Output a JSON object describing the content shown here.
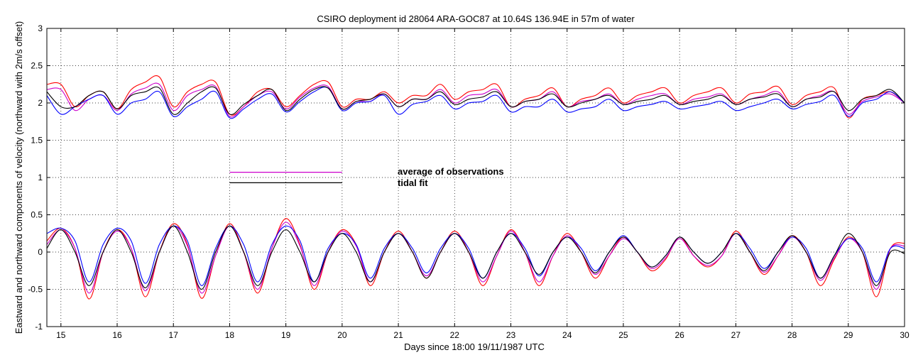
{
  "chart_data": {
    "type": "line",
    "title": "CSIRO deployment id 28064 ARA-GOC87 at 10.64S 136.94E in 57m of water",
    "xlabel": "Days since 18:00 19/11/1987 UTC",
    "ylabel": "Eastward  and northward components of velocity  (northward with 2m/s offset)",
    "xlim": [
      14.75,
      30
    ],
    "ylim": [
      -1,
      3
    ],
    "xticks": [
      15,
      16,
      17,
      18,
      19,
      20,
      21,
      22,
      23,
      24,
      25,
      26,
      27,
      28,
      29,
      30
    ],
    "yticks": [
      -1,
      -0.5,
      0,
      0.5,
      1,
      1.5,
      2,
      2.5,
      3
    ],
    "grid": true,
    "legend": {
      "entries": [
        {
          "label": "average of observations",
          "color": "#cc00cc",
          "y": 1.07
        },
        {
          "label": "tidal fit",
          "color": "#000000",
          "y": 0.93
        }
      ],
      "x_range": [
        18,
        20
      ]
    },
    "series_style": [
      {
        "name": "red",
        "color": "#ff0000"
      },
      {
        "name": "magenta",
        "color": "#cc00cc"
      },
      {
        "name": "blue",
        "color": "#0000ff"
      },
      {
        "name": "black",
        "color": "#000000"
      }
    ],
    "eastward_series": [
      {
        "name": "red",
        "color": "#ff0000",
        "x": [
          14.75,
          15.0,
          15.25,
          15.5,
          15.75,
          16.0,
          16.25,
          16.5,
          16.75,
          17.0,
          17.25,
          17.5,
          17.75,
          18.0,
          18.25,
          18.5,
          18.75,
          19.0,
          19.25,
          19.5,
          19.75,
          20.0,
          20.25,
          20.5,
          20.75,
          21.0,
          21.25,
          21.5,
          21.75,
          22.0,
          22.25,
          22.5,
          22.75,
          23.0,
          23.25,
          23.5,
          23.75,
          24.0,
          24.25,
          24.5,
          24.75,
          25.0,
          25.25,
          25.5,
          25.75,
          26.0,
          26.25,
          26.5,
          26.75,
          27.0,
          27.25,
          27.5,
          27.75,
          28.0,
          28.25,
          28.5,
          28.75,
          29.0,
          29.25,
          29.5,
          29.75,
          30.0
        ],
        "y": [
          0.15,
          0.32,
          0.05,
          -0.63,
          0.0,
          0.3,
          0.05,
          -0.6,
          0.0,
          0.38,
          0.1,
          -0.62,
          -0.05,
          0.38,
          0.0,
          -0.55,
          0.05,
          0.45,
          0.1,
          -0.5,
          0.0,
          0.3,
          0.1,
          -0.45,
          0.0,
          0.28,
          0.0,
          -0.35,
          0.0,
          0.28,
          0.0,
          -0.45,
          -0.05,
          0.3,
          0.0,
          -0.45,
          -0.05,
          0.25,
          0.0,
          -0.35,
          -0.05,
          0.2,
          0.0,
          -0.25,
          -0.1,
          0.2,
          -0.05,
          -0.2,
          -0.05,
          0.28,
          0.0,
          -0.3,
          -0.05,
          0.22,
          0.0,
          -0.45,
          -0.1,
          0.2,
          0.0,
          -0.6,
          0.05,
          0.12
        ]
      },
      {
        "name": "magenta",
        "color": "#cc00cc",
        "x": [
          14.75,
          15.0,
          15.25,
          15.5,
          15.75,
          16.0,
          16.25,
          16.5,
          16.75,
          17.0,
          17.25,
          17.5,
          17.75,
          18.0,
          18.25,
          18.5,
          18.75,
          19.0,
          19.25,
          19.5,
          19.75,
          20.0,
          20.25,
          20.5,
          20.75,
          21.0,
          21.25,
          21.5,
          21.75,
          22.0,
          22.25,
          22.5,
          22.75,
          23.0,
          23.25,
          23.5,
          23.75,
          24.0,
          24.25,
          24.5,
          24.75,
          25.0,
          25.25,
          25.5,
          25.75,
          26.0,
          26.25,
          26.5,
          26.75,
          27.0,
          27.25,
          27.5,
          27.75,
          28.0,
          28.25,
          28.5,
          28.75,
          29.0,
          29.25,
          29.5,
          29.75,
          30.0
        ],
        "y": [
          0.1,
          0.3,
          0.05,
          -0.55,
          0.0,
          0.28,
          0.05,
          -0.52,
          0.0,
          0.35,
          0.08,
          -0.55,
          -0.05,
          0.35,
          0.0,
          -0.5,
          0.05,
          0.4,
          0.08,
          -0.45,
          0.0,
          0.28,
          0.08,
          -0.4,
          0.0,
          0.25,
          0.0,
          -0.32,
          0.0,
          0.25,
          0.0,
          -0.4,
          -0.05,
          0.28,
          0.0,
          -0.4,
          -0.05,
          0.22,
          0.0,
          -0.3,
          -0.05,
          0.18,
          0.0,
          -0.22,
          -0.08,
          0.18,
          -0.05,
          -0.18,
          -0.05,
          0.25,
          0.0,
          -0.27,
          -0.05,
          0.2,
          0.0,
          -0.38,
          -0.08,
          0.18,
          0.0,
          -0.5,
          0.05,
          0.08
        ]
      },
      {
        "name": "blue",
        "color": "#0000ff",
        "x": [
          14.75,
          15.0,
          15.25,
          15.5,
          15.75,
          16.0,
          16.25,
          16.5,
          16.75,
          17.0,
          17.25,
          17.5,
          17.75,
          18.0,
          18.25,
          18.5,
          18.75,
          19.0,
          19.25,
          19.5,
          19.75,
          20.0,
          20.25,
          20.5,
          20.75,
          21.0,
          21.25,
          21.5,
          21.75,
          22.0,
          22.25,
          22.5,
          22.75,
          23.0,
          23.25,
          23.5,
          23.75,
          24.0,
          24.25,
          24.5,
          24.75,
          25.0,
          25.25,
          25.5,
          25.75,
          26.0,
          26.25,
          26.5,
          26.75,
          27.0,
          27.25,
          27.5,
          27.75,
          28.0,
          28.25,
          28.5,
          28.75,
          29.0,
          29.25,
          29.5,
          29.75,
          30.0
        ],
        "y": [
          0.25,
          0.32,
          0.15,
          -0.4,
          0.1,
          0.32,
          0.15,
          -0.42,
          0.1,
          0.35,
          0.15,
          -0.45,
          0.05,
          0.35,
          0.1,
          -0.4,
          0.1,
          0.35,
          0.15,
          -0.4,
          0.05,
          0.25,
          0.1,
          -0.35,
          0.05,
          0.25,
          0.05,
          -0.28,
          0.05,
          0.25,
          0.05,
          -0.35,
          0.0,
          0.25,
          0.05,
          -0.32,
          0.0,
          0.2,
          0.05,
          -0.25,
          0.0,
          0.22,
          0.0,
          -0.2,
          -0.05,
          0.2,
          0.0,
          -0.15,
          0.0,
          0.25,
          0.05,
          -0.22,
          0.0,
          0.2,
          0.05,
          -0.35,
          -0.05,
          0.18,
          0.05,
          -0.4,
          0.05,
          0.05
        ]
      },
      {
        "name": "black",
        "color": "#000000",
        "x": [
          14.75,
          15.0,
          15.25,
          15.5,
          15.75,
          16.0,
          16.25,
          16.5,
          16.75,
          17.0,
          17.25,
          17.5,
          17.75,
          18.0,
          18.25,
          18.5,
          18.75,
          19.0,
          19.25,
          19.5,
          19.75,
          20.0,
          20.25,
          20.5,
          20.75,
          21.0,
          21.25,
          21.5,
          21.75,
          22.0,
          22.25,
          22.5,
          22.75,
          23.0,
          23.25,
          23.5,
          23.75,
          24.0,
          24.25,
          24.5,
          24.75,
          25.0,
          25.25,
          25.5,
          25.75,
          26.0,
          26.25,
          26.5,
          26.75,
          27.0,
          27.25,
          27.5,
          27.75,
          28.0,
          28.25,
          28.5,
          28.75,
          29.0,
          29.25,
          29.5,
          29.75,
          30.0
        ],
        "y": [
          0.05,
          0.3,
          0.0,
          -0.45,
          0.0,
          0.3,
          0.0,
          -0.48,
          0.0,
          0.35,
          0.0,
          -0.5,
          0.0,
          0.35,
          0.0,
          -0.45,
          0.0,
          0.3,
          0.0,
          -0.4,
          0.0,
          0.25,
          0.0,
          -0.4,
          0.0,
          0.25,
          0.0,
          -0.35,
          0.0,
          0.25,
          0.0,
          -0.35,
          0.0,
          0.25,
          0.0,
          -0.3,
          0.0,
          0.2,
          0.0,
          -0.28,
          0.0,
          0.2,
          0.0,
          -0.2,
          -0.05,
          0.2,
          0.0,
          -0.15,
          0.0,
          0.25,
          0.0,
          -0.25,
          0.0,
          0.22,
          0.0,
          -0.35,
          -0.05,
          0.25,
          0.0,
          -0.45,
          0.0,
          -0.02
        ]
      }
    ],
    "northward_series": [
      {
        "name": "red",
        "color": "#ff0000",
        "x": [
          14.75,
          15.0,
          15.25,
          15.5,
          15.75,
          16.0,
          16.25,
          16.5,
          16.75,
          17.0,
          17.25,
          17.5,
          17.75,
          18.0,
          18.25,
          18.5,
          18.75,
          19.0,
          19.25,
          19.5,
          19.75,
          20.0,
          20.25,
          20.5,
          20.75,
          21.0,
          21.25,
          21.5,
          21.75,
          22.0,
          22.25,
          22.5,
          22.75,
          23.0,
          23.25,
          23.5,
          23.75,
          24.0,
          24.25,
          24.5,
          24.75,
          25.0,
          25.25,
          25.5,
          25.75,
          26.0,
          26.25,
          26.5,
          26.75,
          27.0,
          27.25,
          27.5,
          27.75,
          28.0,
          28.25,
          28.5,
          28.75,
          29.0,
          29.25,
          29.5,
          29.75,
          30.0
        ],
        "y": [
          2.25,
          2.25,
          1.95,
          2.1,
          2.15,
          1.92,
          2.18,
          2.28,
          2.35,
          1.95,
          2.15,
          2.25,
          2.28,
          1.85,
          1.95,
          2.15,
          2.18,
          1.95,
          2.1,
          2.25,
          2.28,
          1.95,
          2.05,
          2.05,
          2.15,
          2.0,
          2.1,
          2.1,
          2.25,
          2.05,
          2.15,
          2.18,
          2.25,
          1.95,
          2.05,
          2.1,
          2.2,
          1.95,
          2.05,
          2.1,
          2.2,
          2.0,
          2.1,
          2.15,
          2.2,
          2.0,
          2.1,
          2.15,
          2.2,
          2.0,
          2.12,
          2.15,
          2.22,
          1.98,
          2.1,
          2.15,
          2.2,
          1.8,
          2.05,
          2.1,
          2.15,
          2.0
        ]
      },
      {
        "name": "magenta",
        "color": "#cc00cc",
        "x": [
          14.75,
          15.0,
          15.25,
          15.5,
          15.75,
          16.0,
          16.25,
          16.5,
          16.75,
          17.0,
          17.25,
          17.5,
          17.75,
          18.0,
          18.25,
          18.5,
          18.75,
          19.0,
          19.25,
          19.5,
          19.75,
          20.0,
          20.25,
          20.5,
          20.75,
          21.0,
          21.25,
          21.5,
          21.75,
          22.0,
          22.25,
          22.5,
          22.75,
          23.0,
          23.25,
          23.5,
          23.75,
          24.0,
          24.25,
          24.5,
          24.75,
          25.0,
          25.25,
          25.5,
          25.75,
          26.0,
          26.25,
          26.5,
          26.75,
          27.0,
          27.25,
          27.5,
          27.75,
          28.0,
          28.25,
          28.5,
          28.75,
          29.0,
          29.25,
          29.5,
          29.75,
          30.0
        ],
        "y": [
          2.18,
          2.18,
          1.9,
          2.05,
          2.1,
          1.9,
          2.12,
          2.2,
          2.25,
          1.9,
          2.1,
          2.18,
          2.22,
          1.82,
          1.95,
          2.1,
          2.15,
          1.92,
          2.08,
          2.2,
          2.22,
          1.92,
          2.02,
          2.02,
          2.12,
          1.95,
          2.05,
          2.05,
          2.18,
          2.0,
          2.1,
          2.12,
          2.18,
          1.95,
          2.02,
          2.05,
          2.15,
          1.95,
          2.02,
          2.05,
          2.12,
          1.98,
          2.05,
          2.1,
          2.12,
          1.98,
          2.05,
          2.08,
          2.12,
          1.98,
          2.05,
          2.1,
          2.15,
          1.95,
          2.05,
          2.1,
          2.15,
          1.85,
          2.02,
          2.08,
          2.12,
          2.0
        ]
      },
      {
        "name": "blue",
        "color": "#0000ff",
        "x": [
          14.75,
          15.0,
          15.25,
          15.5,
          15.75,
          16.0,
          16.25,
          16.5,
          16.75,
          17.0,
          17.25,
          17.5,
          17.75,
          18.0,
          18.25,
          18.5,
          18.75,
          19.0,
          19.25,
          19.5,
          19.75,
          20.0,
          20.25,
          20.5,
          20.75,
          21.0,
          21.25,
          21.5,
          21.75,
          22.0,
          22.25,
          22.5,
          22.75,
          23.0,
          23.25,
          23.5,
          23.75,
          24.0,
          24.25,
          24.5,
          24.75,
          25.0,
          25.25,
          25.5,
          25.75,
          26.0,
          26.25,
          26.5,
          26.75,
          27.0,
          27.25,
          27.5,
          27.75,
          28.0,
          28.25,
          28.5,
          28.75,
          29.0,
          29.25,
          29.5,
          29.75,
          30.0
        ],
        "y": [
          2.1,
          1.85,
          1.95,
          2.05,
          2.1,
          1.85,
          2.0,
          2.05,
          2.15,
          1.82,
          1.95,
          2.05,
          2.15,
          1.8,
          1.92,
          2.05,
          2.12,
          1.88,
          2.02,
          2.15,
          2.2,
          1.9,
          2.0,
          2.02,
          2.1,
          1.85,
          1.98,
          2.02,
          2.1,
          1.92,
          2.0,
          2.02,
          2.1,
          1.88,
          1.95,
          1.95,
          2.05,
          1.88,
          1.92,
          1.95,
          2.05,
          1.9,
          1.95,
          1.98,
          2.02,
          1.92,
          1.95,
          1.98,
          2.02,
          1.9,
          1.95,
          2.0,
          2.05,
          1.92,
          1.98,
          2.02,
          2.1,
          1.82,
          2.0,
          2.05,
          2.15,
          2.0
        ]
      },
      {
        "name": "black",
        "color": "#000000",
        "x": [
          14.75,
          15.0,
          15.25,
          15.5,
          15.75,
          16.0,
          16.25,
          16.5,
          16.75,
          17.0,
          17.25,
          17.5,
          17.75,
          18.0,
          18.25,
          18.5,
          18.75,
          19.0,
          19.25,
          19.5,
          19.75,
          20.0,
          20.25,
          20.5,
          20.75,
          21.0,
          21.25,
          21.5,
          21.75,
          22.0,
          22.25,
          22.5,
          22.75,
          23.0,
          23.25,
          23.5,
          23.75,
          24.0,
          24.25,
          24.5,
          24.75,
          25.0,
          25.25,
          25.5,
          25.75,
          26.0,
          26.25,
          26.5,
          26.75,
          27.0,
          27.25,
          27.5,
          27.75,
          28.0,
          28.25,
          28.5,
          28.75,
          29.0,
          29.25,
          29.5,
          29.75,
          30.0
        ],
        "y": [
          2.15,
          1.95,
          1.95,
          2.1,
          2.15,
          1.92,
          2.1,
          2.15,
          2.2,
          1.85,
          2.0,
          2.15,
          2.2,
          1.85,
          1.98,
          2.1,
          2.18,
          1.9,
          2.05,
          2.18,
          2.2,
          1.92,
          2.02,
          2.05,
          2.12,
          1.95,
          2.05,
          2.05,
          2.15,
          1.98,
          2.05,
          2.08,
          2.15,
          1.95,
          2.02,
          2.05,
          2.12,
          1.95,
          2.0,
          2.05,
          2.1,
          1.98,
          2.02,
          2.05,
          2.1,
          1.98,
          2.02,
          2.05,
          2.1,
          1.98,
          2.05,
          2.08,
          2.12,
          1.95,
          2.05,
          2.08,
          2.15,
          1.9,
          2.05,
          2.1,
          2.18,
          2.0
        ]
      }
    ]
  }
}
